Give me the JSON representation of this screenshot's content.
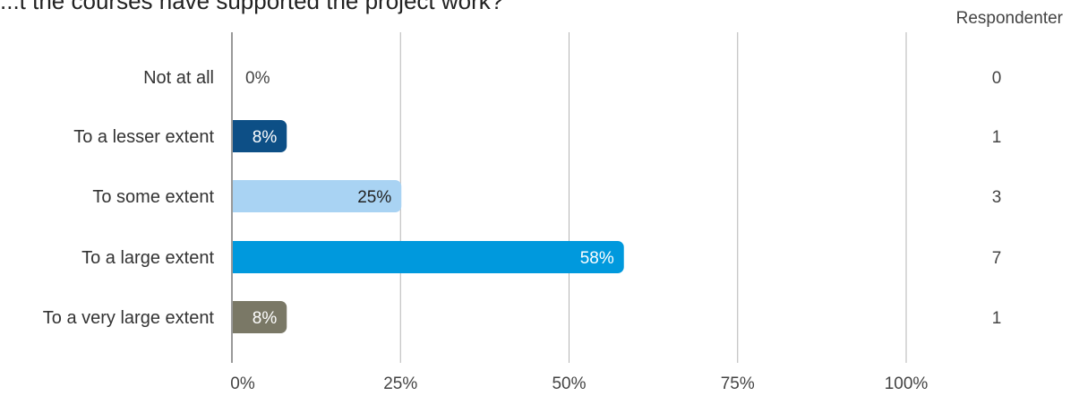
{
  "title": "...t the courses have supported the project work?",
  "respondents_header": "Respondenter",
  "colors": {
    "not_at_all": "#0d4f86",
    "lesser": "#0d4f86",
    "some": "#a9d3f3",
    "large": "#0099dd",
    "very_large": "#7a7866",
    "grid": "#b5b5b5",
    "axis": "#999999"
  },
  "chart_data": {
    "type": "bar",
    "orientation": "horizontal",
    "categories": [
      "Not at all",
      "To a lesser extent",
      "To some extent",
      "To a large extent",
      "To a very large extent"
    ],
    "values": [
      0,
      8,
      25,
      58,
      8
    ],
    "value_labels": [
      "0%",
      "8%",
      "25%",
      "58%",
      "8%"
    ],
    "respondents": [
      "0",
      "1",
      "3",
      "7",
      "1"
    ],
    "xlim": [
      0,
      100
    ],
    "xticks": [
      "0%",
      "25%",
      "50%",
      "75%",
      "100%"
    ],
    "grid": true
  }
}
